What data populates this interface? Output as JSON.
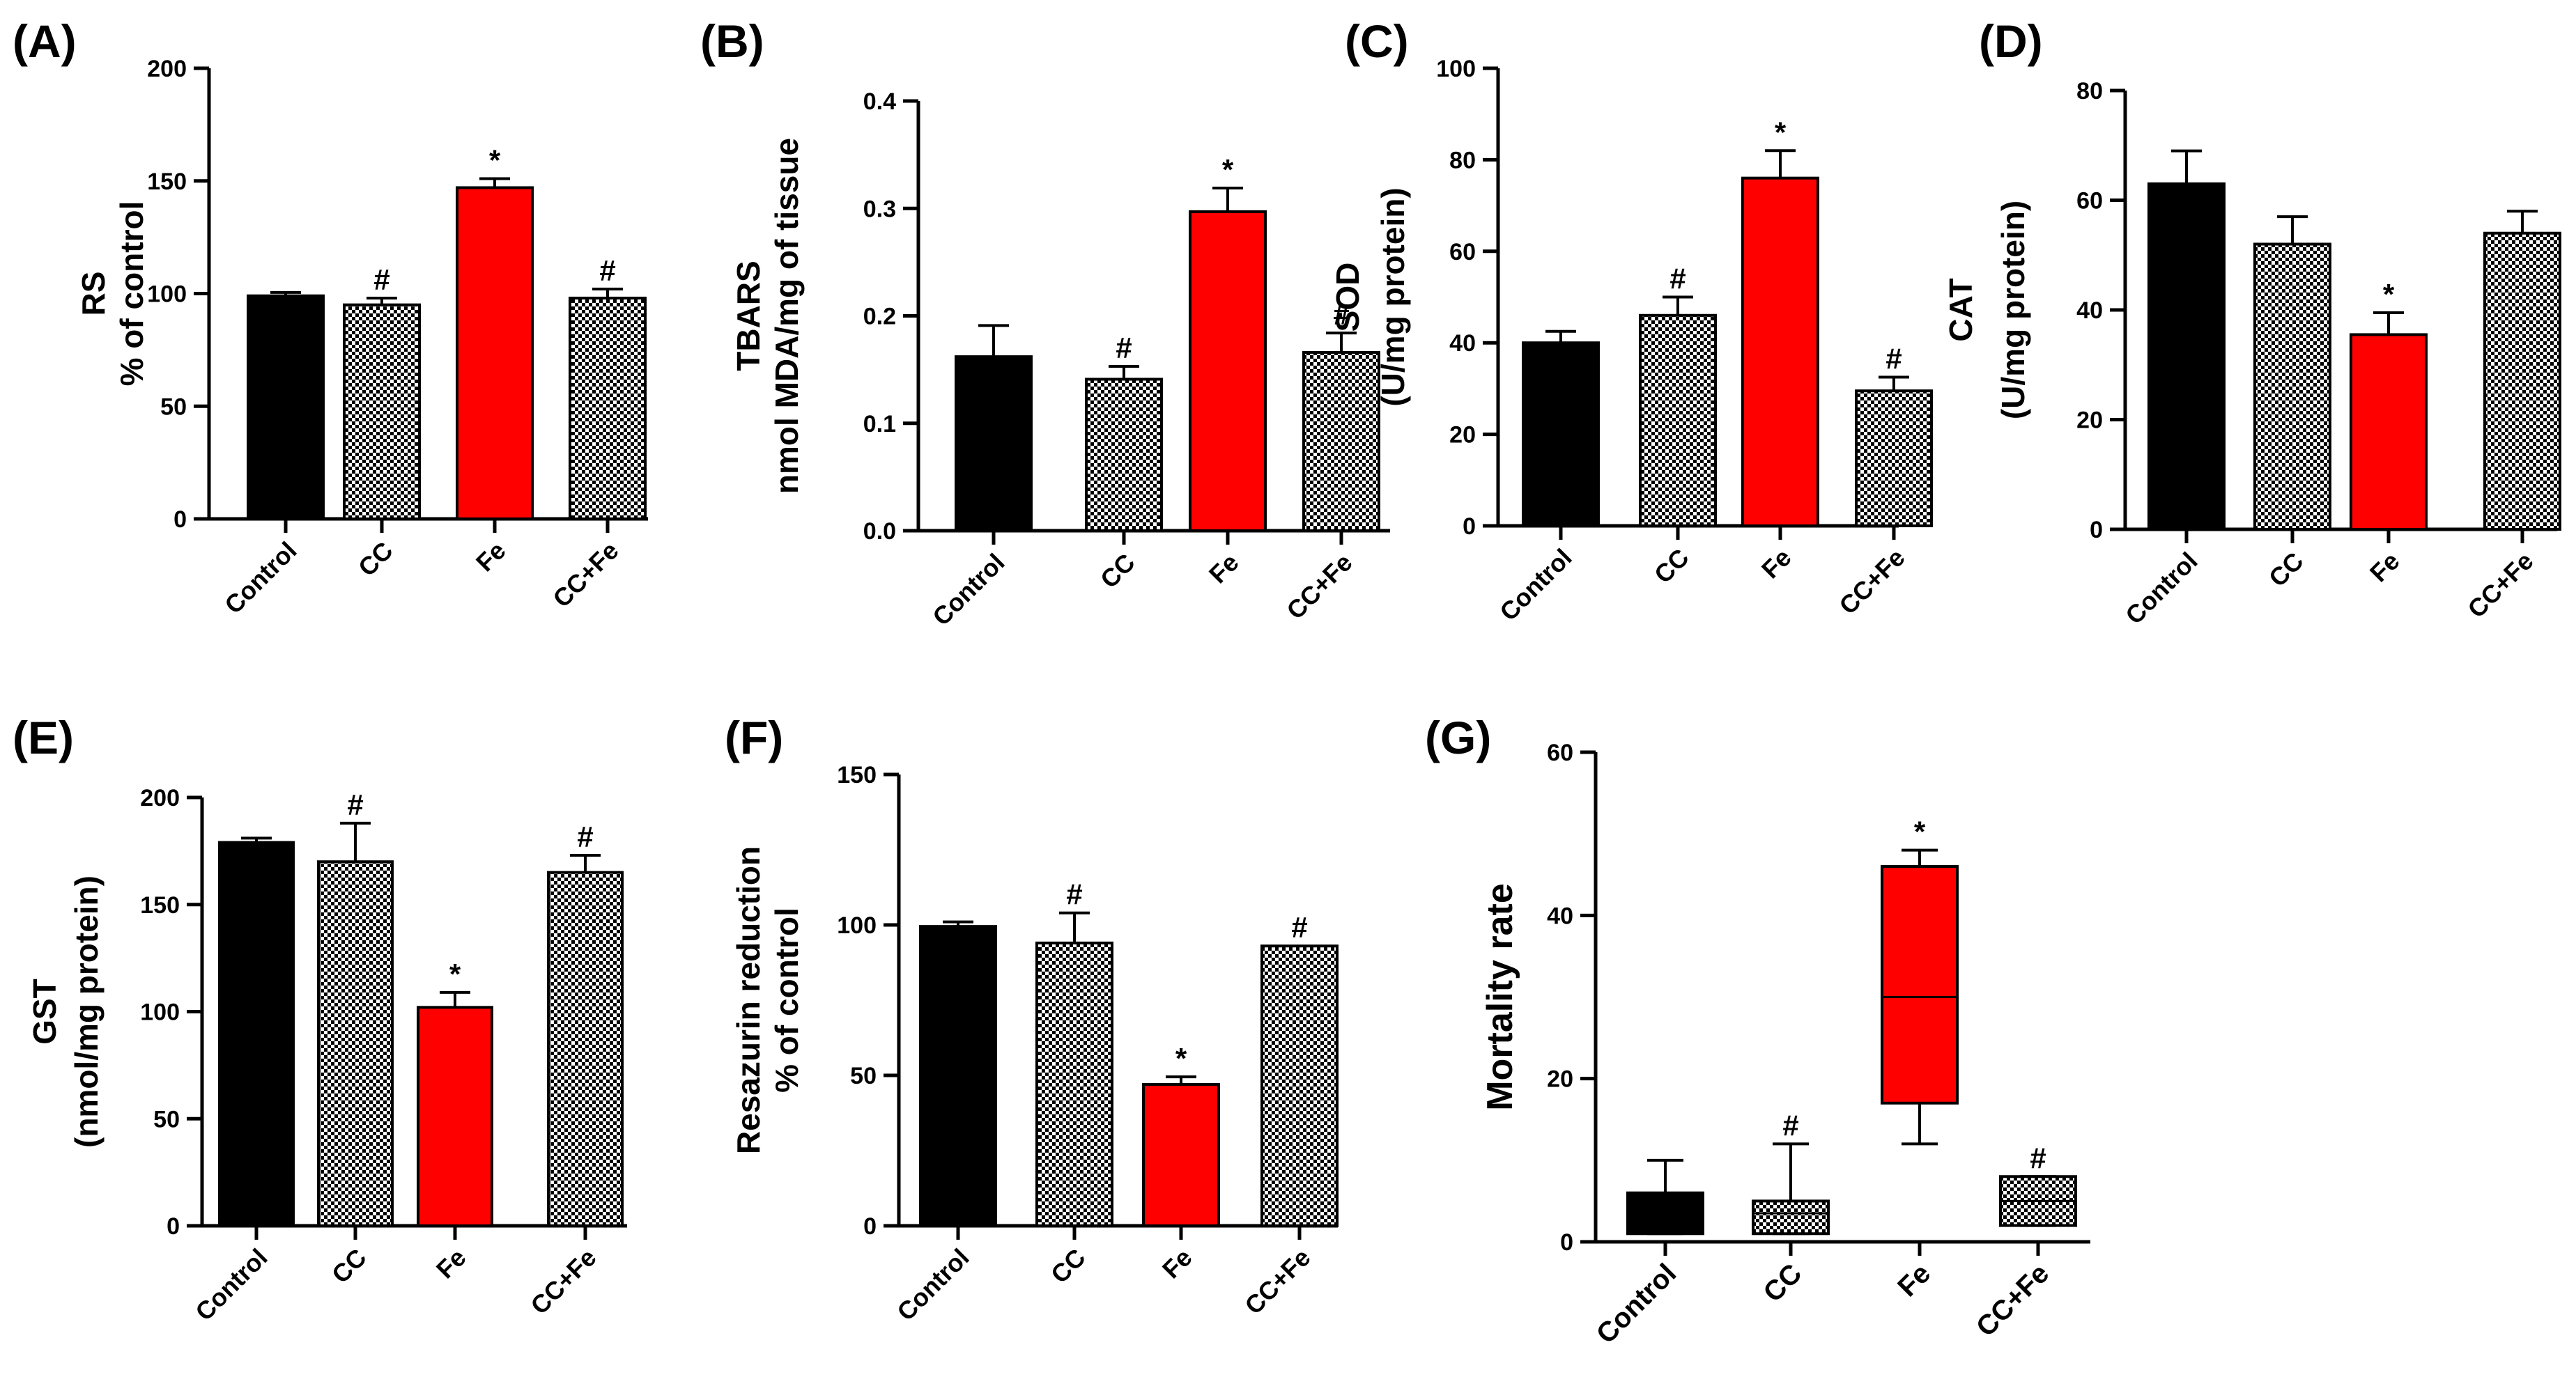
{
  "colors": {
    "black": "#000000",
    "red": "#ff0000",
    "checker_dark": "#000000",
    "checker_light": "#ffffff"
  },
  "chart_data": [
    {
      "panel": "(A)",
      "type": "bar",
      "ylabel_lines": [
        "RS",
        "% of control"
      ],
      "categories": [
        "Control",
        "CC",
        "Fe",
        "CC+Fe"
      ],
      "fills": [
        "black",
        "checker",
        "red",
        "checker"
      ],
      "values": [
        99,
        95,
        147,
        98
      ],
      "errors": [
        1.5,
        3,
        4,
        4
      ],
      "annotations": [
        "",
        "#",
        "*",
        "#"
      ],
      "ylim": [
        0,
        200
      ],
      "ticks": [
        0,
        50,
        100,
        150,
        200
      ],
      "tick_labels": [
        "0",
        "50",
        "100",
        "150",
        "200"
      ]
    },
    {
      "panel": "(B)",
      "type": "bar",
      "ylabel_lines": [
        "TBARS",
        "nmol MDA/mg of tissue"
      ],
      "categories": [
        "Control",
        "CC",
        "Fe",
        "CC+Fe"
      ],
      "fills": [
        "black",
        "checker",
        "red",
        "checker"
      ],
      "values": [
        0.162,
        0.141,
        0.297,
        0.166
      ],
      "errors": [
        0.029,
        0.012,
        0.022,
        0.018
      ],
      "annotations": [
        "",
        "#",
        "*",
        "#"
      ],
      "ylim": [
        0,
        0.4
      ],
      "ticks": [
        0,
        0.1,
        0.2,
        0.3,
        0.4
      ],
      "tick_labels": [
        "0.0",
        "0.1",
        "0.2",
        "0.3",
        "0.4"
      ]
    },
    {
      "panel": "(C)",
      "type": "bar",
      "ylabel_lines": [
        "SOD",
        "(U/mg protein)"
      ],
      "categories": [
        "Control",
        "CC",
        "Fe",
        "CC+Fe"
      ],
      "fills": [
        "black",
        "checker",
        "red",
        "checker"
      ],
      "values": [
        40,
        46,
        76,
        29.5
      ],
      "errors": [
        2.5,
        4,
        6,
        3
      ],
      "annotations": [
        "",
        "#",
        "*",
        "#"
      ],
      "ylim": [
        0,
        100
      ],
      "ticks": [
        0,
        20,
        40,
        60,
        80,
        100
      ],
      "tick_labels": [
        "0",
        "20",
        "40",
        "60",
        "80",
        "100"
      ]
    },
    {
      "panel": "(D)",
      "type": "bar",
      "ylabel_lines": [
        "CAT",
        "(U/mg protein)"
      ],
      "categories": [
        "Control",
        "CC",
        "Fe",
        "CC+Fe"
      ],
      "fills": [
        "black",
        "checker",
        "red",
        "checker"
      ],
      "values": [
        63,
        52,
        35.5,
        54
      ],
      "errors": [
        6,
        5,
        4,
        4
      ],
      "annotations": [
        "",
        "",
        "*",
        ""
      ],
      "ylim": [
        0,
        80
      ],
      "ticks": [
        0,
        20,
        40,
        60,
        80
      ],
      "tick_labels": [
        "0",
        "20",
        "40",
        "60",
        "80"
      ]
    },
    {
      "panel": "(E)",
      "type": "bar",
      "ylabel_lines": [
        "GST",
        "(nmol/mg protein)"
      ],
      "categories": [
        "Control",
        "CC",
        "Fe",
        "CC+Fe"
      ],
      "fills": [
        "black",
        "checker",
        "red",
        "checker"
      ],
      "values": [
        179,
        170,
        102,
        165
      ],
      "errors": [
        2,
        18,
        7,
        8
      ],
      "annotations": [
        "",
        "#",
        "*",
        "#"
      ],
      "ylim": [
        0,
        200
      ],
      "ticks": [
        0,
        50,
        100,
        150,
        200
      ],
      "tick_labels": [
        "0",
        "50",
        "100",
        "150",
        "200"
      ]
    },
    {
      "panel": "(F)",
      "type": "bar",
      "ylabel_lines": [
        "Resazurin reduction",
        "% of control"
      ],
      "categories": [
        "Control",
        "CC",
        "Fe",
        "CC+Fe"
      ],
      "fills": [
        "black",
        "checker",
        "red",
        "checker"
      ],
      "values": [
        99.5,
        94,
        47,
        93
      ],
      "errors": [
        1.5,
        10,
        2.5,
        0
      ],
      "annotations": [
        "",
        "#",
        "*",
        "#"
      ],
      "ylim": [
        0,
        150
      ],
      "ticks": [
        0,
        50,
        100,
        150
      ],
      "tick_labels": [
        "0",
        "50",
        "100",
        "150"
      ]
    },
    {
      "panel": "(G)",
      "type": "box",
      "ylabel_lines": [
        "Mortality rate"
      ],
      "categories": [
        "Control",
        "CC",
        "Fe",
        "CC+Fe"
      ],
      "fills": [
        "black",
        "checker",
        "red",
        "checker"
      ],
      "boxes": [
        {
          "min": 1,
          "q1": 1,
          "median": 6,
          "q3": 6,
          "max": 10
        },
        {
          "min": 1,
          "q1": 1,
          "median": 3.5,
          "q3": 5,
          "max": 12
        },
        {
          "min": 12,
          "q1": 17,
          "median": 30,
          "q3": 46,
          "max": 48
        },
        {
          "min": 2,
          "q1": 2,
          "median": 5,
          "q3": 8,
          "max": 8
        }
      ],
      "annotations": [
        "",
        "#",
        "*",
        "#"
      ],
      "ylim": [
        0,
        60
      ],
      "ticks": [
        0,
        20,
        40,
        60
      ],
      "tick_labels": [
        "0",
        "20",
        "40",
        "60"
      ]
    }
  ]
}
